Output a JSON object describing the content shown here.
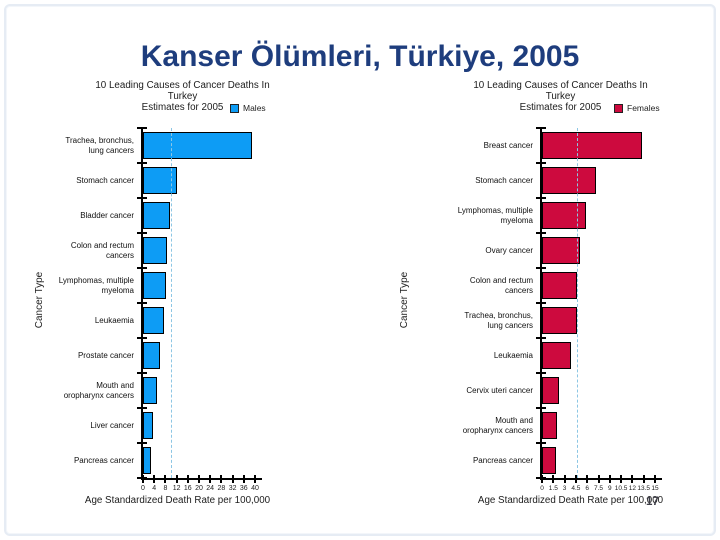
{
  "slide": {
    "title": "Kanser Ölümleri, Türkiye, 2005",
    "page_number": "17"
  },
  "colors": {
    "title": "#1e3d7d",
    "male_bar": "#0d9cf5",
    "female_bar": "#cd0a3e",
    "bar_border": "#000000",
    "reference_line": "#8cc6e4"
  },
  "chart_data": [
    {
      "type": "bar",
      "orientation": "horizontal",
      "title_line1": "10 Leading Causes of Cancer Deaths In",
      "title_line2": "Turkey",
      "title_line3": "Estimates for 2005",
      "legend_label": "Males",
      "legend_position": "top-right",
      "color": "#0d9cf5",
      "categories": [
        "Trachea, bronchus,\nlung cancers",
        "Stomach cancer",
        "Bladder cancer",
        "Colon and rectum\ncancers",
        "Lymphomas, multiple\nmyeloma",
        "Leukaemia",
        "Prostate cancer",
        "Mouth and\noropharynx cancers",
        "Liver cancer",
        "Pancreas cancer"
      ],
      "values": [
        39,
        12,
        9.8,
        8.4,
        8.2,
        7.6,
        6,
        5,
        3.5,
        2.8
      ],
      "xlabel": "Age Standardized Death Rate per 100,000",
      "ylabel": "Cancer Type",
      "xlim": [
        0,
        40
      ],
      "xticks": [
        0,
        4,
        8,
        12,
        16,
        20,
        24,
        28,
        32,
        36,
        40
      ],
      "reference_line": 10,
      "grid": false
    },
    {
      "type": "bar",
      "orientation": "horizontal",
      "title_line1": "10 Leading Causes of Cancer Deaths In",
      "title_line2": "Turkey",
      "title_line3": "Estimates for 2005",
      "legend_label": "Females",
      "legend_position": "top-right",
      "color": "#cd0a3e",
      "categories": [
        "Breast cancer",
        "Stomach cancer",
        "Lymphomas, multiple\nmyeloma",
        "Ovary cancer",
        "Colon and rectum\ncancers",
        "Trachea, bronchus,\nlung cancers",
        "Leukaemia",
        "Cervix uteri cancer",
        "Mouth and\noropharynx cancers",
        "Pancreas cancer"
      ],
      "values": [
        13.3,
        7.2,
        5.8,
        5,
        4.6,
        4.6,
        3.8,
        2.2,
        2,
        1.8
      ],
      "xlabel": "Age Standardized Death Rate per 100,000",
      "ylabel": "Cancer Type",
      "xlim": [
        0,
        15
      ],
      "xticks": [
        0,
        1.5,
        3,
        4.5,
        6,
        7.5,
        9,
        10.5,
        12,
        13.5,
        15
      ],
      "reference_line": 4.6,
      "grid": false
    }
  ]
}
